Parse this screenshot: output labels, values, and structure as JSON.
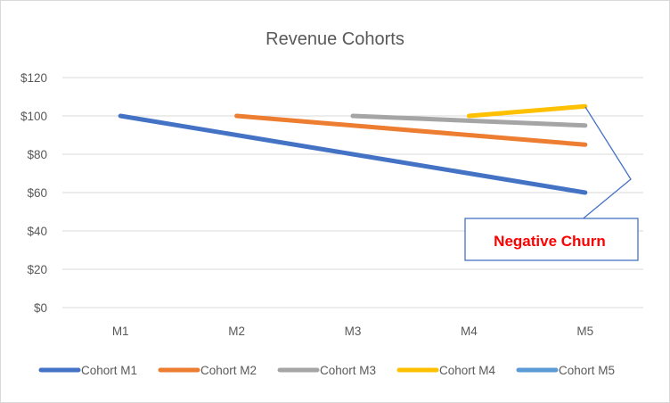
{
  "chart_data": {
    "type": "line",
    "title": "Revenue Cohorts",
    "xlabel": "",
    "ylabel": "",
    "categories": [
      "M1",
      "M2",
      "M3",
      "M4",
      "M5"
    ],
    "ylim": [
      0,
      120
    ],
    "yticks": [
      0,
      20,
      40,
      60,
      80,
      100,
      120
    ],
    "ytick_labels": [
      "$0",
      "$20",
      "$40",
      "$60",
      "$80",
      "$100",
      "$120"
    ],
    "grid": true,
    "legend_position": "bottom",
    "series": [
      {
        "name": "Cohort M1",
        "color": "#4472c4",
        "values": [
          100,
          90,
          80,
          70,
          60
        ]
      },
      {
        "name": "Cohort M2",
        "color": "#ed7d31",
        "values": [
          null,
          100,
          95,
          90,
          85
        ]
      },
      {
        "name": "Cohort M3",
        "color": "#a5a5a5",
        "values": [
          null,
          null,
          100,
          97.5,
          95
        ]
      },
      {
        "name": "Cohort M4",
        "color": "#ffc000",
        "values": [
          null,
          null,
          null,
          100,
          105
        ]
      },
      {
        "name": "Cohort M5",
        "color": "#5b9bd5",
        "values": [
          null,
          null,
          null,
          null,
          null
        ]
      }
    ],
    "annotations": [
      {
        "text": "Negative Churn",
        "text_color": "#ff0000",
        "border_color": "#4472c4",
        "points_to": [
          "Cohort M1 at M5",
          "Cohort M4 at M5"
        ]
      }
    ]
  }
}
